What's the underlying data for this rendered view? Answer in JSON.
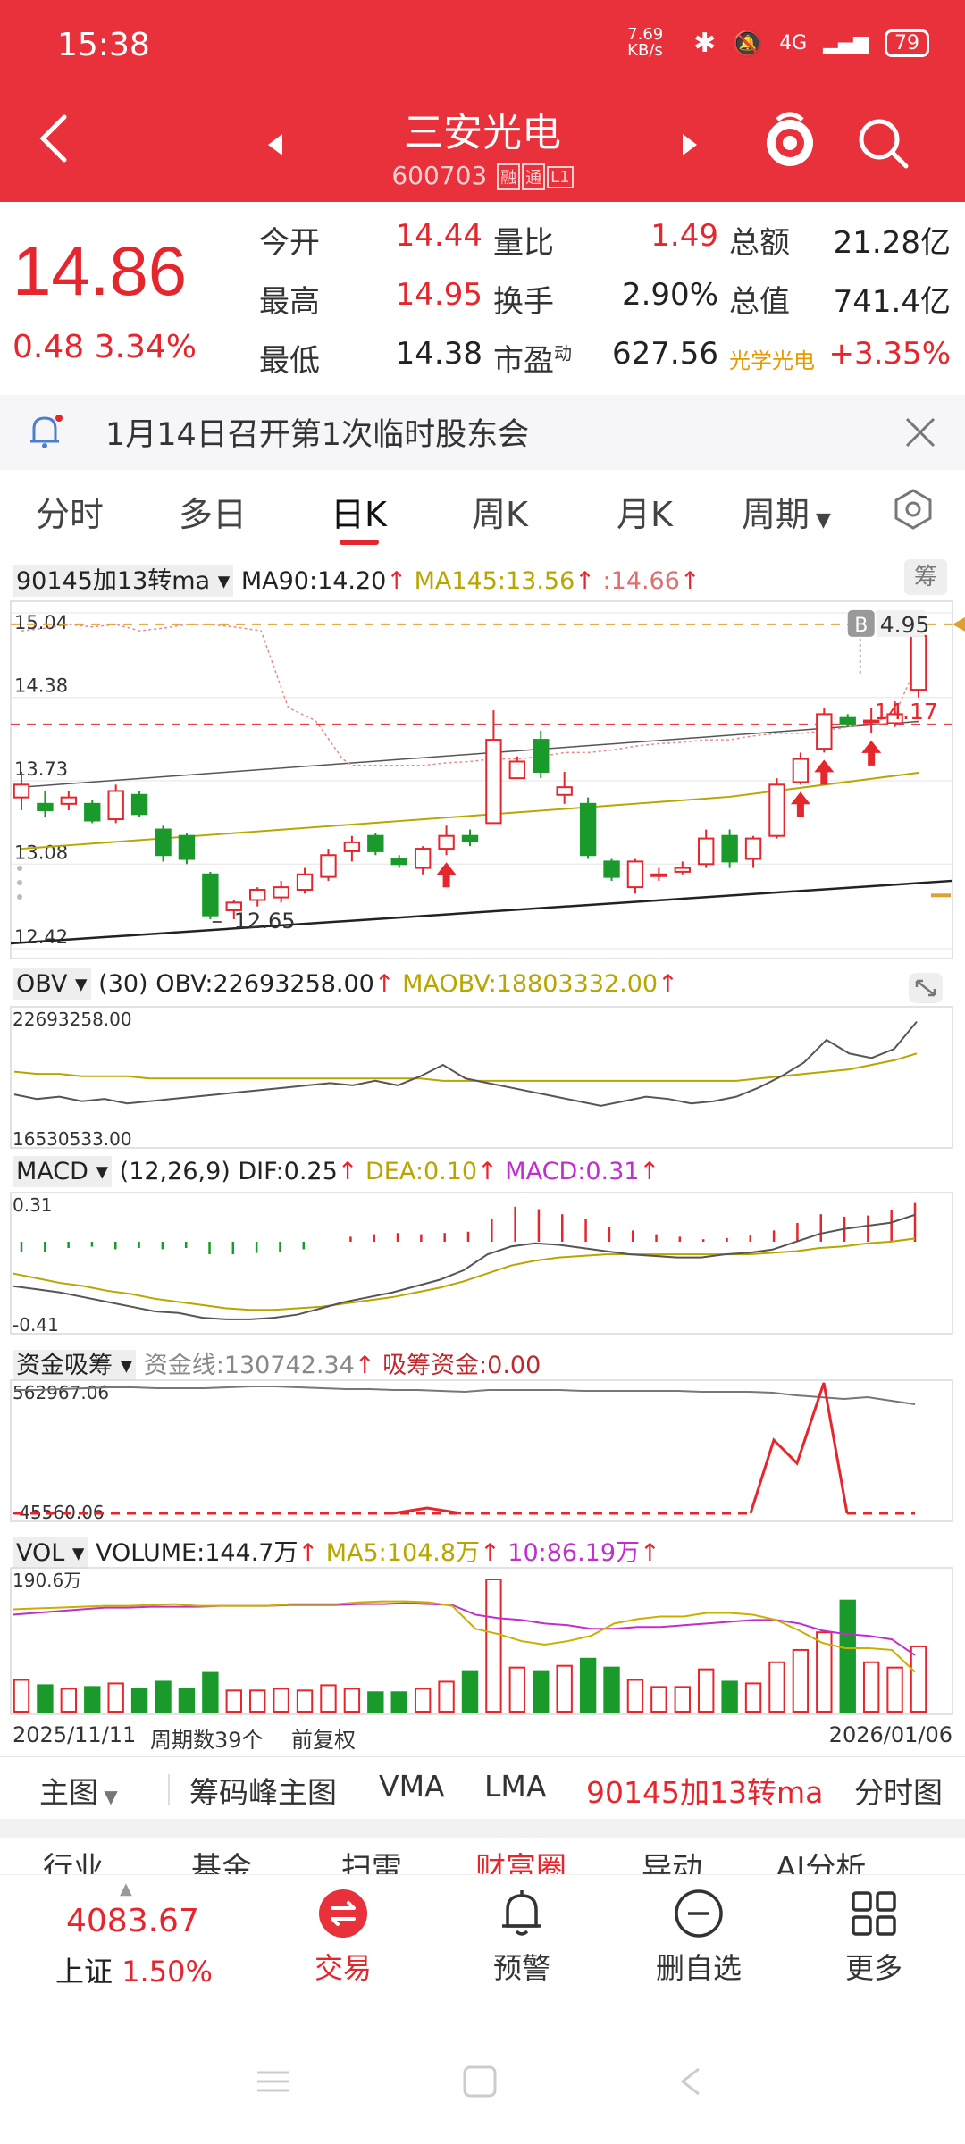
{
  "status": {
    "time": "15:38",
    "net_speed": "7.69 KB/s",
    "battery": "79",
    "signal": "4G"
  },
  "header": {
    "title": "三安光电",
    "code": "600703",
    "tags": [
      "融",
      "通",
      "L1"
    ]
  },
  "quote": {
    "price": "14.86",
    "change": "0.48",
    "change_pct": "3.34%",
    "rows": [
      [
        {
          "label": "今开",
          "value": "14.44",
          "color": "red"
        },
        {
          "label": "量比",
          "value": "1.49",
          "color": "red"
        },
        {
          "label": "总额",
          "value": "21.28亿",
          "color": "dark"
        }
      ],
      [
        {
          "label": "最高",
          "value": "14.95",
          "color": "red"
        },
        {
          "label": "换手",
          "value": "2.90%",
          "color": "dark"
        },
        {
          "label": "总值",
          "value": "741.4亿",
          "color": "dark"
        }
      ],
      [
        {
          "label": "最低",
          "value": "14.38",
          "color": "dark"
        },
        {
          "label": "市盈动",
          "value": "627.56",
          "color": "dark"
        },
        {
          "label": "光学光电",
          "value": "+3.35%",
          "color": "red"
        }
      ]
    ]
  },
  "notice": {
    "text": "1月14日召开第1次临时股东会"
  },
  "tabs": [
    "分时",
    "多日",
    "日K",
    "周K",
    "月K",
    "周期"
  ],
  "active_tab": "日K",
  "main_chart": {
    "indicator_name": "90145加13转ma",
    "ma90": "MA90:14.20",
    "ma145": "MA145:13.56",
    "ma_extra": ":14.66",
    "chip_label": "筹",
    "y_labels": [
      "15.04",
      "14.38",
      "13.73",
      "13.08",
      "12.42"
    ],
    "marker_high": "4.95",
    "marker_b": "B",
    "marker_level": "14.17",
    "marker_low": "12.65"
  },
  "obv": {
    "name": "OBV",
    "params": "(30)",
    "value": "OBV:22693258.00",
    "ma": "MAOBV:18803332.00",
    "y_top": "22693258.00",
    "y_bottom": "16530533.00"
  },
  "macd": {
    "name": "MACD",
    "params": "(12,26,9)",
    "dif": "DIF:0.25",
    "dea": "DEA:0.10",
    "macd": "MACD:0.31",
    "y_top": "0.31",
    "y_bottom": "-0.41"
  },
  "chip": {
    "name": "资金吸筹",
    "line": "资金线:130742.34",
    "absorb": "吸筹资金:0.00",
    "y_top": "562967.06",
    "y_bottom": "-45560.06"
  },
  "vol": {
    "name": "VOL",
    "volume": "VOLUME:144.7万",
    "ma5": "MA5:104.8万",
    "ma10": "10:86.19万",
    "y_top": "190.6万"
  },
  "footer_axis": {
    "start": "2025/11/11",
    "period": "周期数39个",
    "adjust": "前复权",
    "end": "2026/01/06"
  },
  "toolbar": [
    "主图",
    "筹码峰主图",
    "VMA",
    "LMA",
    "90145加13转ma",
    "分时图"
  ],
  "nav_peek": [
    "行业",
    "基金",
    "扫雷",
    "财富圈",
    "异动",
    "AI分析"
  ],
  "bottom_nav": {
    "index_value": "4083.67",
    "index_name": "上证",
    "index_pct": "1.50%",
    "items": [
      "交易",
      "预警",
      "删自选",
      "更多"
    ]
  },
  "colors": {
    "up": "#e6262d",
    "down": "#1a9a2a",
    "header": "#e8313a",
    "ma_yellow": "#b8a600",
    "purple": "#c02ecf"
  },
  "chart_data": {
    "type": "candlestick",
    "dates_start": "2025/11/11",
    "dates_end": "2026/01/06",
    "ylim": [
      12.42,
      15.04
    ],
    "candles": [
      [
        13.6,
        13.8,
        13.5,
        13.7
      ],
      [
        13.55,
        13.65,
        13.45,
        13.5
      ],
      [
        13.55,
        13.65,
        13.5,
        13.6
      ],
      [
        13.55,
        13.58,
        13.4,
        13.42
      ],
      [
        13.43,
        13.7,
        13.4,
        13.65
      ],
      [
        13.62,
        13.65,
        13.45,
        13.47
      ],
      [
        13.35,
        13.38,
        13.1,
        13.15
      ],
      [
        13.3,
        13.32,
        13.08,
        13.12
      ],
      [
        13.0,
        13.02,
        12.65,
        12.68
      ],
      [
        12.72,
        12.8,
        12.65,
        12.78
      ],
      [
        12.8,
        12.9,
        12.75,
        12.88
      ],
      [
        12.82,
        12.95,
        12.78,
        12.9
      ],
      [
        12.88,
        13.05,
        12.85,
        13.0
      ],
      [
        12.98,
        13.2,
        12.95,
        13.15
      ],
      [
        13.18,
        13.3,
        13.1,
        13.25
      ],
      [
        13.3,
        13.32,
        13.15,
        13.18
      ],
      [
        13.12,
        13.15,
        13.05,
        13.08
      ],
      [
        13.05,
        13.22,
        13.0,
        13.2
      ],
      [
        13.2,
        13.38,
        13.15,
        13.3
      ],
      [
        13.3,
        13.35,
        13.22,
        13.26
      ],
      [
        13.4,
        14.28,
        13.4,
        14.05
      ],
      [
        13.75,
        13.92,
        13.75,
        13.88
      ],
      [
        14.05,
        14.12,
        13.75,
        13.8
      ],
      [
        13.62,
        13.8,
        13.55,
        13.68
      ],
      [
        13.55,
        13.6,
        13.12,
        13.15
      ],
      [
        13.1,
        13.12,
        12.95,
        12.98
      ],
      [
        12.9,
        13.12,
        12.85,
        13.1
      ],
      [
        13.0,
        13.05,
        12.95,
        13.0
      ],
      [
        13.02,
        13.1,
        13.0,
        13.05
      ],
      [
        13.08,
        13.35,
        13.05,
        13.28
      ],
      [
        13.3,
        13.35,
        13.05,
        13.1
      ],
      [
        13.12,
        13.3,
        13.05,
        13.28
      ],
      [
        13.3,
        13.75,
        13.28,
        13.7
      ],
      [
        13.72,
        13.95,
        13.7,
        13.9
      ],
      [
        13.98,
        14.3,
        13.95,
        14.25
      ],
      [
        14.22,
        14.25,
        14.15,
        14.17
      ],
      [
        14.2,
        14.3,
        14.1,
        14.2
      ],
      [
        14.18,
        14.35,
        14.15,
        14.25
      ],
      [
        14.44,
        14.95,
        14.38,
        14.86
      ]
    ]
  }
}
